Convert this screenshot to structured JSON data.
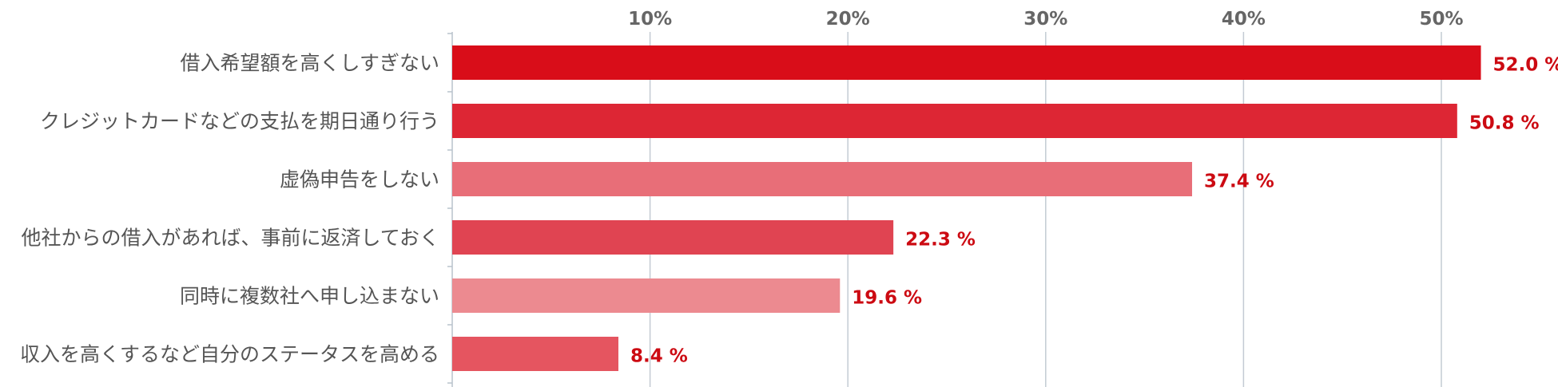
{
  "chart_data": {
    "type": "bar",
    "orientation": "horizontal",
    "categories": [
      "借入希望額を高くしすぎない",
      "クレジットカードなどの支払を期日通り行う",
      "虚偽申告をしない",
      "他社からの借入があれば、事前に返済しておく",
      "同時に複数社へ申し込まない",
      "収入を高くするなど自分のステータスを高める"
    ],
    "values": [
      52.0,
      50.8,
      37.4,
      22.3,
      19.6,
      8.4
    ],
    "value_labels": [
      "52.0 %",
      "50.8 %",
      "37.4 %",
      "22.3 %",
      "19.6 %",
      "8.4 %"
    ],
    "bar_colors": [
      "#d90d19",
      "#dd2634",
      "#e86e78",
      "#e04452",
      "#ec8a90",
      "#e55560"
    ],
    "x_ticks": [
      10,
      20,
      30,
      40,
      50
    ],
    "x_tick_labels": [
      "10%",
      "20%",
      "30%",
      "40%",
      "50%"
    ],
    "xlim": [
      0,
      55
    ],
    "grid": true,
    "axis_position": "top",
    "title": "",
    "xlabel": "",
    "ylabel": ""
  }
}
